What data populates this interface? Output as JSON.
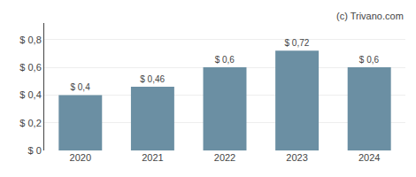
{
  "chart_data": {
    "type": "bar",
    "categories": [
      "2020",
      "2021",
      "2022",
      "2023",
      "2024"
    ],
    "values": [
      0.4,
      0.46,
      0.6,
      0.72,
      0.6
    ],
    "value_labels": [
      "$ 0,4",
      "$ 0,46",
      "$ 0,6",
      "$ 0,72",
      "$ 0,6"
    ],
    "data_labels": true,
    "color": "#6b8fa3",
    "ylim": [
      0,
      0.92
    ],
    "yticks": [
      {
        "value": 0,
        "label": "$ 0"
      },
      {
        "value": 0.2,
        "label": "$ 0,2"
      },
      {
        "value": 0.4,
        "label": "$ 0,4"
      },
      {
        "value": 0.6,
        "label": "$ 0,6"
      },
      {
        "value": 0.8,
        "label": "$ 0,8"
      }
    ],
    "grid": true,
    "annotations": [
      "(c) Trivano.com"
    ]
  }
}
